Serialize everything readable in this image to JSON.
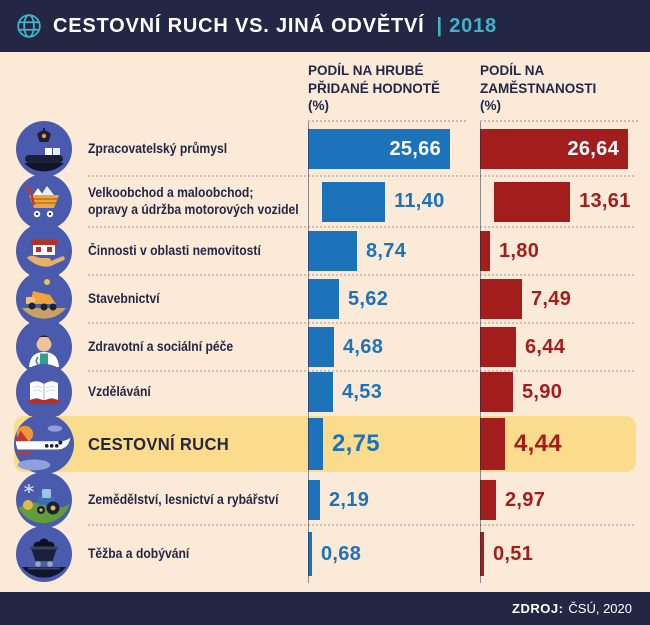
{
  "header": {
    "title": "CESTOVNÍ RUCH VS. JINÁ ODVĚTVÍ",
    "year": "| 2018"
  },
  "columns": {
    "gva": "PODÍL NA HRUBÉ\nPŘIDANÉ HODNOTĚ\n(%)",
    "employment": "PODÍL NA\nZAMĚSTNANOSTI\n(%)"
  },
  "rows": [
    {
      "label": "Zpracovatelský průmysl",
      "label2": "",
      "icon": "manufacturing-icon",
      "gva": 25.66,
      "emp": 26.64,
      "gva_text": "25,66",
      "emp_text": "26,64",
      "highlighted": false
    },
    {
      "label": "Velkoobchod a maloobchod;",
      "label2": "opravy a údržba motorových vozidel",
      "icon": "shopping-cart-icon",
      "gva": 11.4,
      "emp": 13.61,
      "gva_text": "11,40",
      "emp_text": "13,61",
      "highlighted": false
    },
    {
      "label": "Činnosti v oblasti nemovitostí",
      "label2": "",
      "icon": "real-estate-icon",
      "gva": 8.74,
      "emp": 1.8,
      "gva_text": "8,74",
      "emp_text": "1,80",
      "highlighted": false
    },
    {
      "label": "Stavebnictví",
      "label2": "",
      "icon": "construction-truck-icon",
      "gva": 5.62,
      "emp": 7.49,
      "gva_text": "5,62",
      "emp_text": "7,49",
      "highlighted": false
    },
    {
      "label": "Zdravotní a sociální péče",
      "label2": "",
      "icon": "healthcare-icon",
      "gva": 4.68,
      "emp": 6.44,
      "gva_text": "4,68",
      "emp_text": "6,44",
      "highlighted": false
    },
    {
      "label": "Vzdělávání",
      "label2": "",
      "icon": "education-book-icon",
      "gva": 4.53,
      "emp": 5.9,
      "gva_text": "4,53",
      "emp_text": "5,90",
      "highlighted": false
    },
    {
      "label": "CESTOVNÍ RUCH",
      "label2": "",
      "icon": "tourism-plane-icon",
      "gva": 2.75,
      "emp": 4.44,
      "gva_text": "2,75",
      "emp_text": "4,44",
      "highlighted": true
    },
    {
      "label": "Zemědělství, lesnictví a rybářství",
      "label2": "",
      "icon": "agriculture-tractor-icon",
      "gva": 2.19,
      "emp": 2.97,
      "gva_text": "2,19",
      "emp_text": "2,97",
      "highlighted": false
    },
    {
      "label": "Těžba a dobývání",
      "label2": "",
      "icon": "mining-cart-icon",
      "gva": 0.68,
      "emp": 0.51,
      "gva_text": "0,68",
      "emp_text": "0,51",
      "highlighted": false
    }
  ],
  "footer": {
    "source_label": "ZDROJ:",
    "source_value": "ČSÚ, 2020"
  },
  "colors": {
    "navy": "#232744",
    "cream": "#fcead9",
    "blue": "#1d73b9",
    "red": "#a41d1d",
    "highlight_yellow": "#fadc8c",
    "icon_blue": "#4a5aad",
    "teal": "#3fb6c9"
  },
  "chart_data": {
    "type": "bar",
    "orientation": "horizontal",
    "title": "CESTOVNÍ RUCH VS. JINÁ ODVĚTVÍ | 2018",
    "categories": [
      "Zpracovatelský průmysl",
      "Velkoobchod a maloobchod; opravy a údržba motorových vozidel",
      "Činnosti v oblasti nemovitostí",
      "Stavebnictví",
      "Zdravotní a sociální péče",
      "Vzdělávání",
      "CESTOVNÍ RUCH",
      "Zemědělství, lesnictví a rybářství",
      "Těžba a dobývání"
    ],
    "series": [
      {
        "name": "PODÍL NA HRUBÉ PŘIDANÉ HODNOTĚ (%)",
        "color": "#1d73b9",
        "values": [
          25.66,
          11.4,
          8.74,
          5.62,
          4.68,
          4.53,
          2.75,
          2.19,
          0.68
        ]
      },
      {
        "name": "PODÍL NA ZAMĚSTNANOSTI (%)",
        "color": "#a41d1d",
        "values": [
          26.64,
          13.61,
          1.8,
          7.49,
          6.44,
          5.9,
          4.44,
          2.97,
          0.51
        ]
      }
    ],
    "highlighted_category": "CESTOVNÍ RUCH",
    "value_label_format": "comma-decimal",
    "xlim": [
      0,
      27
    ],
    "grid": false,
    "legend_position": "column-headers",
    "source": "ZDROJ: ČSÚ, 2020"
  }
}
